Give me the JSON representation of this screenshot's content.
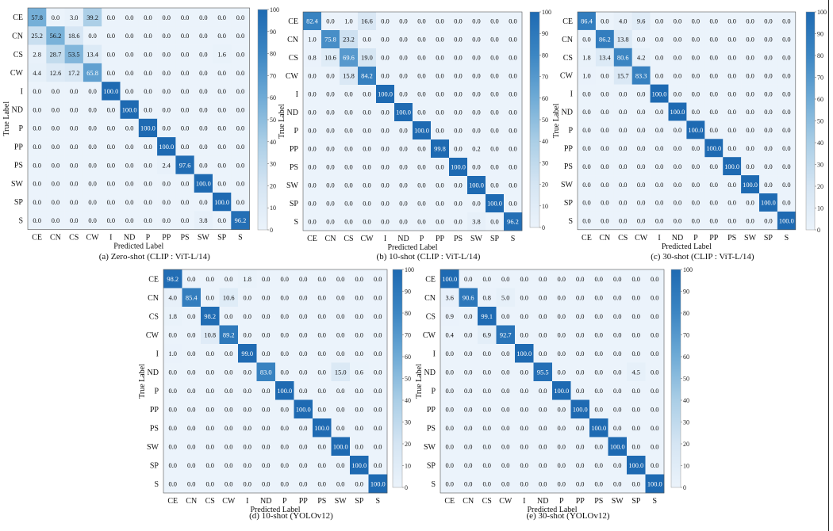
{
  "chart_data": [
    {
      "type": "heatmap",
      "caption": "(a) Zero-shot (CLIP : ViT-L/14)",
      "xlabel": "Predicted Label",
      "ylabel": "True Label",
      "x_categories": [
        "CE",
        "CN",
        "CS",
        "CW",
        "I",
        "ND",
        "P",
        "PP",
        "PS",
        "SW",
        "SP",
        "S"
      ],
      "y_categories": [
        "CE",
        "CN",
        "CS",
        "CW",
        "I",
        "ND",
        "P",
        "PP",
        "PS",
        "SW",
        "SP",
        "S"
      ],
      "colorbar": {
        "min": 0,
        "max": 100,
        "ticks": [
          "100",
          "90",
          "80",
          "70",
          "60",
          "50",
          "40",
          "30",
          "20",
          "10",
          "0"
        ]
      },
      "values": [
        [
          57.8,
          0.0,
          3.0,
          39.2,
          0.0,
          0.0,
          0.0,
          0.0,
          0.0,
          0.0,
          0.0,
          0.0
        ],
        [
          25.2,
          56.2,
          18.6,
          0.0,
          0.0,
          0.0,
          0.0,
          0.0,
          0.0,
          0.0,
          0.0,
          0.0
        ],
        [
          2.8,
          28.7,
          53.5,
          13.4,
          0.0,
          0.0,
          0.0,
          0.0,
          0.0,
          0.0,
          1.6,
          0.0
        ],
        [
          4.4,
          12.6,
          17.2,
          65.8,
          0.0,
          0.0,
          0.0,
          0.0,
          0.0,
          0.0,
          0.0,
          0.0
        ],
        [
          0.0,
          0.0,
          0.0,
          0.0,
          100.0,
          0.0,
          0.0,
          0.0,
          0.0,
          0.0,
          0.0,
          0.0
        ],
        [
          0.0,
          0.0,
          0.0,
          0.0,
          0.0,
          100.0,
          0.0,
          0.0,
          0.0,
          0.0,
          0.0,
          0.0
        ],
        [
          0.0,
          0.0,
          0.0,
          0.0,
          0.0,
          0.0,
          100.0,
          0.0,
          0.0,
          0.0,
          0.0,
          0.0
        ],
        [
          0.0,
          0.0,
          0.0,
          0.0,
          0.0,
          0.0,
          0.0,
          100.0,
          0.0,
          0.0,
          0.0,
          0.0
        ],
        [
          0.0,
          0.0,
          0.0,
          0.0,
          0.0,
          0.0,
          0.0,
          2.4,
          97.6,
          0.0,
          0.0,
          0.0
        ],
        [
          0.0,
          0.0,
          0.0,
          0.0,
          0.0,
          0.0,
          0.0,
          0.0,
          0.0,
          100.0,
          0.0,
          0.0
        ],
        [
          0.0,
          0.0,
          0.0,
          0.0,
          0.0,
          0.0,
          0.0,
          0.0,
          0.0,
          0.0,
          100.0,
          0.0
        ],
        [
          0.0,
          0.0,
          0.0,
          0.0,
          0.0,
          0.0,
          0.0,
          0.0,
          0.0,
          3.8,
          0.0,
          96.2
        ]
      ]
    },
    {
      "type": "heatmap",
      "caption": "(b) 10-shot (CLIP : ViT-L/14)",
      "xlabel": "Predicted Label",
      "ylabel": "True Label",
      "x_categories": [
        "CE",
        "CN",
        "CS",
        "CW",
        "I",
        "ND",
        "P",
        "PP",
        "PS",
        "SW",
        "SP",
        "S"
      ],
      "y_categories": [
        "CE",
        "CN",
        "CS",
        "CW",
        "I",
        "ND",
        "P",
        "PP",
        "PS",
        "SW",
        "SP",
        "S"
      ],
      "colorbar": {
        "min": 0,
        "max": 100,
        "ticks": [
          "100",
          "90",
          "80",
          "70",
          "60",
          "50",
          "40",
          "30",
          "20",
          "10",
          "0"
        ]
      },
      "values": [
        [
          82.4,
          0.0,
          1.0,
          16.6,
          0.0,
          0.0,
          0.0,
          0.0,
          0.0,
          0.0,
          0.0,
          0.0
        ],
        [
          1.0,
          75.8,
          23.2,
          0.0,
          0.0,
          0.0,
          0.0,
          0.0,
          0.0,
          0.0,
          0.0,
          0.0
        ],
        [
          0.8,
          10.6,
          69.6,
          19.0,
          0.0,
          0.0,
          0.0,
          0.0,
          0.0,
          0.0,
          0.0,
          0.0
        ],
        [
          0.0,
          0.0,
          15.8,
          84.2,
          0.0,
          0.0,
          0.0,
          0.0,
          0.0,
          0.0,
          0.0,
          0.0
        ],
        [
          0.0,
          0.0,
          0.0,
          0.0,
          100.0,
          0.0,
          0.0,
          0.0,
          0.0,
          0.0,
          0.0,
          0.0
        ],
        [
          0.0,
          0.0,
          0.0,
          0.0,
          0.0,
          100.0,
          0.0,
          0.0,
          0.0,
          0.0,
          0.0,
          0.0
        ],
        [
          0.0,
          0.0,
          0.0,
          0.0,
          0.0,
          0.0,
          100.0,
          0.0,
          0.0,
          0.0,
          0.0,
          0.0
        ],
        [
          0.0,
          0.0,
          0.0,
          0.0,
          0.0,
          0.0,
          0.0,
          99.8,
          0.0,
          0.2,
          0.0,
          0.0
        ],
        [
          0.0,
          0.0,
          0.0,
          0.0,
          0.0,
          0.0,
          0.0,
          0.0,
          100.0,
          0.0,
          0.0,
          0.0
        ],
        [
          0.0,
          0.0,
          0.0,
          0.0,
          0.0,
          0.0,
          0.0,
          0.0,
          0.0,
          100.0,
          0.0,
          0.0
        ],
        [
          0.0,
          0.0,
          0.0,
          0.0,
          0.0,
          0.0,
          0.0,
          0.0,
          0.0,
          0.0,
          100.0,
          0.0
        ],
        [
          0.0,
          0.0,
          0.0,
          0.0,
          0.0,
          0.0,
          0.0,
          0.0,
          0.0,
          3.8,
          0.0,
          96.2
        ]
      ]
    },
    {
      "type": "heatmap",
      "caption": "(c) 30-shot (CLIP : ViT-L/14)",
      "xlabel": "Predicted Label",
      "ylabel": "True Label",
      "x_categories": [
        "CE",
        "CN",
        "CS",
        "CW",
        "I",
        "ND",
        "P",
        "PP",
        "PS",
        "SW",
        "SP",
        "S"
      ],
      "y_categories": [
        "CE",
        "CN",
        "CS",
        "CW",
        "I",
        "ND",
        "P",
        "PP",
        "PS",
        "SW",
        "SP",
        "S"
      ],
      "colorbar": {
        "min": 0,
        "max": 100,
        "ticks": [
          "100",
          "90",
          "80",
          "70",
          "60",
          "50",
          "40",
          "30",
          "20",
          "10",
          "0"
        ]
      },
      "values": [
        [
          86.4,
          0.0,
          4.0,
          9.6,
          0.0,
          0.0,
          0.0,
          0.0,
          0.0,
          0.0,
          0.0,
          0.0
        ],
        [
          0.0,
          86.2,
          13.8,
          0.0,
          0.0,
          0.0,
          0.0,
          0.0,
          0.0,
          0.0,
          0.0,
          0.0
        ],
        [
          1.8,
          13.4,
          80.6,
          4.2,
          0.0,
          0.0,
          0.0,
          0.0,
          0.0,
          0.0,
          0.0,
          0.0
        ],
        [
          1.0,
          0.0,
          15.7,
          83.3,
          0.0,
          0.0,
          0.0,
          0.0,
          0.0,
          0.0,
          0.0,
          0.0
        ],
        [
          0.0,
          0.0,
          0.0,
          0.0,
          100.0,
          0.0,
          0.0,
          0.0,
          0.0,
          0.0,
          0.0,
          0.0
        ],
        [
          0.0,
          0.0,
          0.0,
          0.0,
          0.0,
          100.0,
          0.0,
          0.0,
          0.0,
          0.0,
          0.0,
          0.0
        ],
        [
          0.0,
          0.0,
          0.0,
          0.0,
          0.0,
          0.0,
          100.0,
          0.0,
          0.0,
          0.0,
          0.0,
          0.0
        ],
        [
          0.0,
          0.0,
          0.0,
          0.0,
          0.0,
          0.0,
          0.0,
          100.0,
          0.0,
          0.0,
          0.0,
          0.0
        ],
        [
          0.0,
          0.0,
          0.0,
          0.0,
          0.0,
          0.0,
          0.0,
          0.0,
          100.0,
          0.0,
          0.0,
          0.0
        ],
        [
          0.0,
          0.0,
          0.0,
          0.0,
          0.0,
          0.0,
          0.0,
          0.0,
          0.0,
          100.0,
          0.0,
          0.0
        ],
        [
          0.0,
          0.0,
          0.0,
          0.0,
          0.0,
          0.0,
          0.0,
          0.0,
          0.0,
          0.0,
          100.0,
          0.0
        ],
        [
          0.0,
          0.0,
          0.0,
          0.0,
          0.0,
          0.0,
          0.0,
          0.0,
          0.0,
          0.0,
          0.0,
          100.0
        ]
      ]
    },
    {
      "type": "heatmap",
      "caption": "(d) 10-shot (YOLOv12)",
      "xlabel": "Predicted Label",
      "ylabel": "True Label",
      "x_categories": [
        "CE",
        "CN",
        "CS",
        "CW",
        "I",
        "ND",
        "P",
        "PP",
        "PS",
        "SW",
        "SP",
        "S"
      ],
      "y_categories": [
        "CE",
        "CN",
        "CS",
        "CW",
        "I",
        "ND",
        "P",
        "PP",
        "PS",
        "SW",
        "SP",
        "S"
      ],
      "colorbar": {
        "min": 0,
        "max": 100,
        "ticks": [
          "100",
          "90",
          "80",
          "70",
          "60",
          "50",
          "40",
          "30",
          "20",
          "10",
          "0"
        ]
      },
      "values": [
        [
          98.2,
          0.0,
          0.0,
          0.0,
          1.8,
          0.0,
          0.0,
          0.0,
          0.0,
          0.0,
          0.0,
          0.0
        ],
        [
          4.0,
          85.4,
          0.0,
          10.6,
          0.0,
          0.0,
          0.0,
          0.0,
          0.0,
          0.0,
          0.0,
          0.0
        ],
        [
          1.8,
          0.0,
          98.2,
          0.0,
          0.0,
          0.0,
          0.0,
          0.0,
          0.0,
          0.0,
          0.0,
          0.0
        ],
        [
          0.0,
          0.0,
          10.8,
          89.2,
          0.0,
          0.0,
          0.0,
          0.0,
          0.0,
          0.0,
          0.0,
          0.0
        ],
        [
          1.0,
          0.0,
          0.0,
          0.0,
          99.0,
          0.0,
          0.0,
          0.0,
          0.0,
          0.0,
          0.0,
          0.0
        ],
        [
          0.0,
          0.0,
          0.0,
          0.0,
          0.0,
          83.0,
          0.0,
          0.0,
          0.0,
          15.0,
          0.6,
          0.0
        ],
        [
          0.0,
          0.0,
          0.0,
          0.0,
          0.0,
          0.0,
          100.0,
          0.0,
          0.0,
          0.0,
          0.0,
          0.0
        ],
        [
          0.0,
          0.0,
          0.0,
          0.0,
          0.0,
          0.0,
          0.0,
          100.0,
          0.0,
          0.0,
          0.0,
          0.0
        ],
        [
          0.0,
          0.0,
          0.0,
          0.0,
          0.0,
          0.0,
          0.0,
          0.0,
          100.0,
          0.0,
          0.0,
          0.0
        ],
        [
          0.0,
          0.0,
          0.0,
          0.0,
          0.0,
          0.0,
          0.0,
          0.0,
          0.0,
          100.0,
          0.0,
          0.0
        ],
        [
          0.0,
          0.0,
          0.0,
          0.0,
          0.0,
          0.0,
          0.0,
          0.0,
          0.0,
          0.0,
          100.0,
          0.0
        ],
        [
          0.0,
          0.0,
          0.0,
          0.0,
          0.0,
          0.0,
          0.0,
          0.0,
          0.0,
          0.0,
          0.0,
          100.0
        ]
      ]
    },
    {
      "type": "heatmap",
      "caption": "(e) 30-shot (YOLOv12)",
      "xlabel": "Predicted Label",
      "ylabel": "True Label",
      "x_categories": [
        "CE",
        "CN",
        "CS",
        "CW",
        "I",
        "ND",
        "P",
        "PP",
        "PS",
        "SW",
        "SP",
        "S"
      ],
      "y_categories": [
        "CE",
        "CN",
        "CS",
        "CW",
        "I",
        "ND",
        "P",
        "PP",
        "PS",
        "SW",
        "SP",
        "S"
      ],
      "colorbar": {
        "min": 0,
        "max": 100,
        "ticks": [
          "100",
          "90",
          "80",
          "70",
          "60",
          "50",
          "40",
          "30",
          "20",
          "10",
          "0"
        ]
      },
      "values": [
        [
          100.0,
          0.0,
          0.0,
          0.0,
          0.0,
          0.0,
          0.0,
          0.0,
          0.0,
          0.0,
          0.0,
          0.0
        ],
        [
          3.6,
          90.6,
          0.8,
          5.0,
          0.0,
          0.0,
          0.0,
          0.0,
          0.0,
          0.0,
          0.0,
          0.0
        ],
        [
          0.9,
          0.0,
          99.1,
          0.0,
          0.0,
          0.0,
          0.0,
          0.0,
          0.0,
          0.0,
          0.0,
          0.0
        ],
        [
          0.4,
          0.0,
          6.9,
          92.7,
          0.0,
          0.0,
          0.0,
          0.0,
          0.0,
          0.0,
          0.0,
          0.0
        ],
        [
          0.0,
          0.0,
          0.0,
          0.0,
          100.0,
          0.0,
          0.0,
          0.0,
          0.0,
          0.0,
          0.0,
          0.0
        ],
        [
          0.0,
          0.0,
          0.0,
          0.0,
          0.0,
          95.5,
          0.0,
          0.0,
          0.0,
          0.0,
          4.5,
          0.0
        ],
        [
          0.0,
          0.0,
          0.0,
          0.0,
          0.0,
          0.0,
          100.0,
          0.0,
          0.0,
          0.0,
          0.0,
          0.0
        ],
        [
          0.0,
          0.0,
          0.0,
          0.0,
          0.0,
          0.0,
          0.0,
          100.0,
          0.0,
          0.0,
          0.0,
          0.0
        ],
        [
          0.0,
          0.0,
          0.0,
          0.0,
          0.0,
          0.0,
          0.0,
          0.0,
          100.0,
          0.0,
          0.0,
          0.0
        ],
        [
          0.0,
          0.0,
          0.0,
          0.0,
          0.0,
          0.0,
          0.0,
          0.0,
          0.0,
          100.0,
          0.0,
          0.0
        ],
        [
          0.0,
          0.0,
          0.0,
          0.0,
          0.0,
          0.0,
          0.0,
          0.0,
          0.0,
          0.0,
          100.0,
          0.0
        ],
        [
          0.0,
          0.0,
          0.0,
          0.0,
          0.0,
          0.0,
          0.0,
          0.0,
          0.0,
          0.0,
          0.0,
          100.0
        ]
      ]
    }
  ]
}
